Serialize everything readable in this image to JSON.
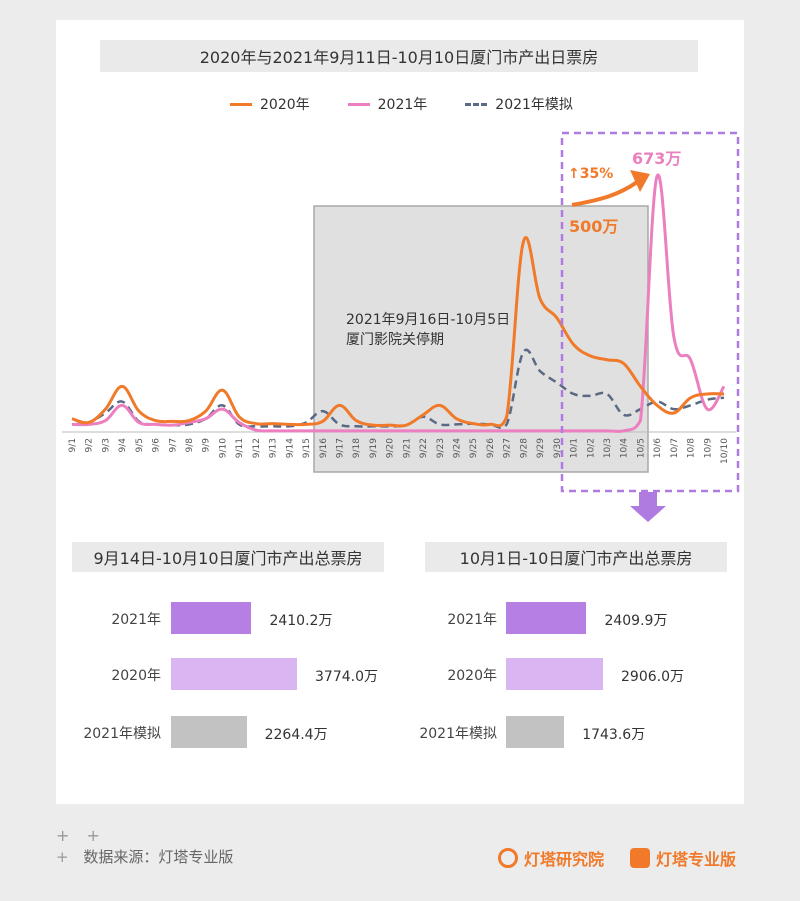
{
  "colors": {
    "y2020": "#f07a2a",
    "y2021": "#ec7fbf",
    "sim": "#5a6a85",
    "closure_bg": "#e0e0e0",
    "highlight": "#b07be0",
    "bar_2021": "#b57fe3",
    "bar_2020": "#d9b5f2",
    "bar_sim": "#c2c2c2"
  },
  "chart_data": [
    {
      "type": "line",
      "title": "2020年与2021年9月11日-10月10日厦门市产出日票房",
      "categories": [
        "9/1",
        "9/2",
        "9/3",
        "9/4",
        "9/5",
        "9/6",
        "9/7",
        "9/8",
        "9/9",
        "9/10",
        "9/11",
        "9/12",
        "9/13",
        "9/14",
        "9/15",
        "9/16",
        "9/17",
        "9/18",
        "9/19",
        "9/20",
        "9/21",
        "9/22",
        "9/23",
        "9/24",
        "9/25",
        "9/26",
        "9/27",
        "9/28",
        "9/29",
        "9/30",
        "10/1",
        "10/2",
        "10/3",
        "10/4",
        "10/5",
        "10/6",
        "10/7",
        "10/8",
        "10/9",
        "10/10"
      ],
      "series": [
        {
          "name": "2020年",
          "style": "solid",
          "color": "#f07a2a",
          "values": [
            35,
            25,
            60,
            120,
            55,
            30,
            28,
            30,
            55,
            110,
            40,
            22,
            22,
            20,
            20,
            28,
            70,
            30,
            18,
            18,
            18,
            45,
            70,
            35,
            22,
            20,
            40,
            500,
            350,
            300,
            230,
            200,
            190,
            180,
            120,
            70,
            50,
            90,
            100,
            100
          ]
        },
        {
          "name": "2021年",
          "style": "solid",
          "color": "#ec7fbf",
          "values": [
            20,
            20,
            30,
            70,
            25,
            20,
            18,
            25,
            35,
            60,
            25,
            5,
            3,
            3,
            3,
            3,
            3,
            3,
            3,
            3,
            3,
            3,
            3,
            3,
            3,
            3,
            3,
            3,
            3,
            3,
            3,
            3,
            3,
            3,
            30,
            673,
            250,
            190,
            60,
            120
          ]
        },
        {
          "name": "2021年模拟",
          "style": "dashed",
          "color": "#5a6a85",
          "values": [
            20,
            25,
            50,
            80,
            28,
            20,
            18,
            20,
            35,
            70,
            20,
            15,
            15,
            15,
            25,
            55,
            20,
            15,
            15,
            15,
            18,
            40,
            20,
            20,
            22,
            20,
            20,
            210,
            160,
            130,
            100,
            95,
            100,
            45,
            60,
            80,
            60,
            70,
            85,
            90
          ]
        }
      ],
      "annotations": {
        "closure_text_1": "2021年9月16日-10月5日",
        "closure_text_2": "厦门影院关停期",
        "peak_2020_label": "500万",
        "peak_2021_label": "673万",
        "growth_label": "↑35%"
      }
    },
    {
      "type": "bar",
      "title": "9月14日-10月10日厦门市产出总票房",
      "categories": [
        "2021年",
        "2020年",
        "2021年模拟"
      ],
      "values": [
        2410.2,
        3774.0,
        2264.4
      ],
      "value_labels": [
        "2410.2万",
        "3774.0万",
        "2264.4万"
      ]
    },
    {
      "type": "bar",
      "title": "10月1日-10日厦门市产出总票房",
      "categories": [
        "2021年",
        "2020年",
        "2021年模拟"
      ],
      "values": [
        2409.9,
        2906.0,
        1743.6
      ],
      "value_labels": [
        "2409.9万",
        "2906.0万",
        "1743.6万"
      ]
    }
  ],
  "footer": {
    "source": "数据来源：灯塔专业版",
    "plus": "+ +",
    "plus2": "+",
    "logo1": "灯塔研究院",
    "logo2": "灯塔专业版"
  }
}
